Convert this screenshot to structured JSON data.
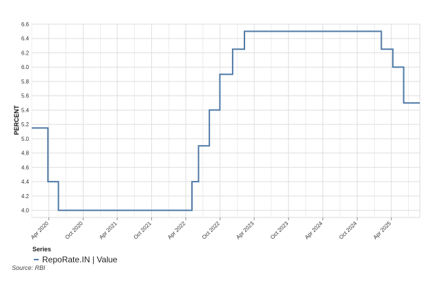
{
  "chart_data": {
    "type": "line",
    "step": true,
    "ylabel": "PERCENT",
    "ylim": [
      3.9,
      6.6
    ],
    "yticks": [
      4.0,
      4.2,
      4.4,
      4.6,
      4.8,
      5.0,
      5.2,
      5.4,
      5.6,
      5.8,
      6.0,
      6.2,
      6.4,
      6.6
    ],
    "xlim": [
      "2020-01-01",
      "2025-08-31"
    ],
    "xticks": [
      {
        "date": "2020-04-01",
        "label": "Apr 2020"
      },
      {
        "date": "2020-10-01",
        "label": "Oct 2020"
      },
      {
        "date": "2021-04-01",
        "label": "Apr 2021"
      },
      {
        "date": "2021-10-01",
        "label": "Oct 2021"
      },
      {
        "date": "2022-04-01",
        "label": "Apr 2022"
      },
      {
        "date": "2022-10-01",
        "label": "Oct 2022"
      },
      {
        "date": "2023-04-01",
        "label": "Apr 2023"
      },
      {
        "date": "2023-10-01",
        "label": "Oct 2023"
      },
      {
        "date": "2024-04-01",
        "label": "Apr 2024"
      },
      {
        "date": "2024-10-01",
        "label": "Oct 2024"
      },
      {
        "date": "2025-04-01",
        "label": "Apr 2025"
      }
    ],
    "grid": true,
    "legend_position": "bottom-left",
    "legend_title": "Series",
    "series": [
      {
        "name": "RepoRate.IN | Value",
        "color": "#4e79a7",
        "points": [
          {
            "x": "2020-01-01",
            "y": 5.15
          },
          {
            "x": "2020-03-27",
            "y": 4.4
          },
          {
            "x": "2020-05-22",
            "y": 4.0
          },
          {
            "x": "2022-05-04",
            "y": 4.4
          },
          {
            "x": "2022-06-08",
            "y": 4.9
          },
          {
            "x": "2022-08-05",
            "y": 5.4
          },
          {
            "x": "2022-09-30",
            "y": 5.9
          },
          {
            "x": "2022-12-07",
            "y": 6.25
          },
          {
            "x": "2023-02-08",
            "y": 6.5
          },
          {
            "x": "2025-02-07",
            "y": 6.25
          },
          {
            "x": "2025-04-09",
            "y": 6.0
          },
          {
            "x": "2025-06-06",
            "y": 5.5
          },
          {
            "x": "2025-08-31",
            "y": 5.5
          }
        ]
      }
    ]
  },
  "source": "Source: RBI"
}
